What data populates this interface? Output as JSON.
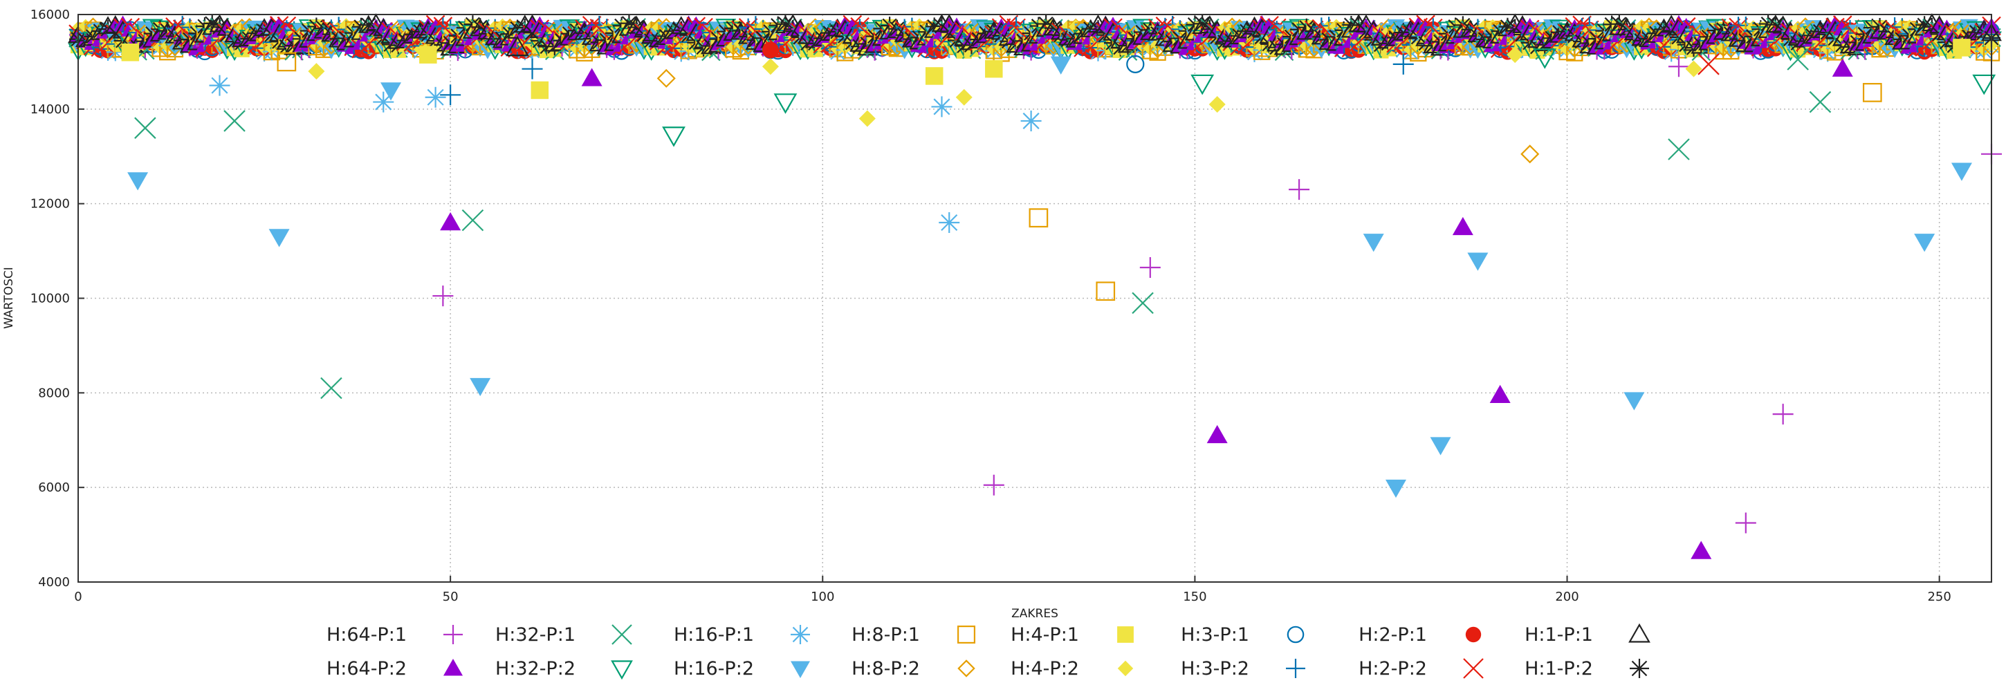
{
  "chart_data": {
    "type": "scatter",
    "title": "",
    "xlabel": "ZAKRES",
    "ylabel": "WARTOSCI",
    "xlim": [
      0,
      257
    ],
    "ylim": [
      4000,
      16000
    ],
    "xticks": [
      0,
      50,
      100,
      150,
      200,
      250
    ],
    "yticks": [
      4000,
      6000,
      8000,
      10000,
      12000,
      14000,
      16000
    ],
    "grid": true,
    "legend_position": "bottom",
    "band_series_note_values": [
      15500
    ],
    "series": [
      {
        "name": "H:64-P:1",
        "marker": "plus",
        "color": "#b434c8",
        "points": [
          [
            49,
            10050
          ],
          [
            123,
            6050
          ],
          [
            144,
            10650
          ],
          [
            164,
            12300
          ],
          [
            215,
            14900
          ],
          [
            224,
            5250
          ],
          [
            229,
            7550
          ],
          [
            257,
            13050
          ]
        ]
      },
      {
        "name": "H:32-P:1",
        "marker": "cross",
        "color": "#2aa77d",
        "points": [
          [
            9,
            13600
          ],
          [
            21,
            13750
          ],
          [
            34,
            8100
          ],
          [
            53,
            11650
          ],
          [
            143,
            9900
          ],
          [
            215,
            13150
          ],
          [
            234,
            14150
          ],
          [
            231,
            15050
          ]
        ]
      },
      {
        "name": "H:16-P:1",
        "marker": "star",
        "color": "#55b4e9",
        "points": [
          [
            19,
            14500
          ],
          [
            41,
            14150
          ],
          [
            48,
            14250
          ],
          [
            117,
            11600
          ],
          [
            128,
            13750
          ],
          [
            116,
            14050
          ]
        ]
      },
      {
        "name": "H:8-P:1",
        "marker": "square-open",
        "color": "#e69f00",
        "points": [
          [
            28,
            15000
          ],
          [
            129,
            11700
          ],
          [
            138,
            10150
          ],
          [
            241,
            14350
          ]
        ]
      },
      {
        "name": "H:4-P:1",
        "marker": "square-filled",
        "color": "#f0e442",
        "points": [
          [
            7,
            15200
          ],
          [
            47,
            15150
          ],
          [
            62,
            14400
          ],
          [
            115,
            14700
          ],
          [
            123,
            14850
          ],
          [
            253,
            15300
          ]
        ]
      },
      {
        "name": "H:3-P:1",
        "marker": "circle-open",
        "color": "#0072b2",
        "points": [
          [
            142,
            14950
          ]
        ]
      },
      {
        "name": "H:2-P:1",
        "marker": "circle-filled",
        "color": "#e51e10",
        "points": [
          [
            93,
            15250
          ]
        ]
      },
      {
        "name": "H:1-P:1",
        "marker": "triangle-up-open",
        "color": "#222222",
        "points": [
          [
            59,
            15300
          ]
        ]
      },
      {
        "name": "H:64-P:2",
        "marker": "triangle-up-filled",
        "color": "#9400d3",
        "points": [
          [
            50,
            11600
          ],
          [
            69,
            14650
          ],
          [
            153,
            7100
          ],
          [
            186,
            11500
          ],
          [
            191,
            7950
          ],
          [
            218,
            4650
          ],
          [
            237,
            14850
          ]
        ]
      },
      {
        "name": "H:32-P:2",
        "marker": "triangle-down-open",
        "color": "#009e73",
        "points": [
          [
            80,
            13450
          ],
          [
            95,
            14150
          ],
          [
            151,
            14550
          ],
          [
            197,
            15100
          ],
          [
            256,
            14550
          ]
        ]
      },
      {
        "name": "H:16-P:2",
        "marker": "triangle-down-filled",
        "color": "#56b4e9",
        "points": [
          [
            8,
            12500
          ],
          [
            27,
            11300
          ],
          [
            42,
            14400
          ],
          [
            54,
            8150
          ],
          [
            132,
            14950
          ],
          [
            174,
            11200
          ],
          [
            177,
            6000
          ],
          [
            183,
            6900
          ],
          [
            188,
            10800
          ],
          [
            209,
            7850
          ],
          [
            248,
            11200
          ],
          [
            253,
            12700
          ]
        ]
      },
      {
        "name": "H:8-P:2",
        "marker": "diamond-open",
        "color": "#e69f00",
        "points": [
          [
            79,
            14650
          ],
          [
            195,
            13050
          ]
        ]
      },
      {
        "name": "H:4-P:2",
        "marker": "diamond-filled",
        "color": "#f0e442",
        "points": [
          [
            32,
            14800
          ],
          [
            93,
            14900
          ],
          [
            106,
            13800
          ],
          [
            119,
            14250
          ],
          [
            153,
            14100
          ],
          [
            217,
            14850
          ],
          [
            193,
            15150
          ]
        ]
      },
      {
        "name": "H:3-P:2",
        "marker": "plus-thin",
        "color": "#0072b2",
        "points": [
          [
            50,
            14300
          ],
          [
            61,
            14850
          ],
          [
            178,
            14950
          ]
        ]
      },
      {
        "name": "H:2-P:2",
        "marker": "cross-thin",
        "color": "#e51e10",
        "points": [
          [
            219,
            14950
          ]
        ]
      },
      {
        "name": "H:1-P:2",
        "marker": "asterisk",
        "color": "#222222",
        "points": []
      }
    ]
  }
}
